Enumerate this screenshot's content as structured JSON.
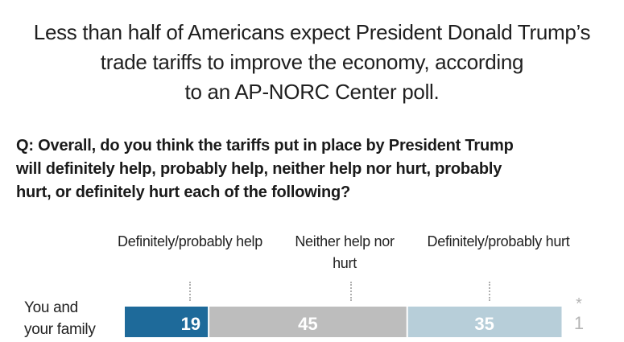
{
  "headline": {
    "lines": [
      "Less than half of Americans expect President Donald Trump’s",
      "trade tariffs to improve the economy, according",
      "to an AP-NORC Center poll."
    ]
  },
  "question": {
    "lines": [
      "Q: Overall, do you think the tariffs put in place by President Trump",
      "will definitely help, probably help, neither help nor hurt, probably",
      "hurt, or definitely hurt each of the following?"
    ]
  },
  "chart_data": {
    "type": "bar",
    "orientation": "horizontal",
    "stacked": true,
    "title": "",
    "xlabel": "",
    "ylabel": "",
    "xlim": [
      0,
      100
    ],
    "categories": [
      "You and your family"
    ],
    "category_lines": [
      [
        "You and",
        "your family"
      ]
    ],
    "series": [
      {
        "name": "Definitely/probably help",
        "values": [
          19
        ],
        "color": "#1e6a9a"
      },
      {
        "name": "Neither help nor hurt",
        "values": [
          45
        ],
        "color": "#bdbdbd"
      },
      {
        "name": "Definitely/probably hurt",
        "values": [
          35
        ],
        "color": "#b7ced9"
      }
    ],
    "series_header_lines": [
      [
        "Definitely/probably help"
      ],
      [
        "Neither help nor",
        "hurt"
      ],
      [
        "Definitely/probably hurt"
      ]
    ],
    "extra": {
      "asterisk": "*",
      "value": 1,
      "color": "#b5b5b5"
    },
    "grid": false,
    "legend": "top"
  }
}
